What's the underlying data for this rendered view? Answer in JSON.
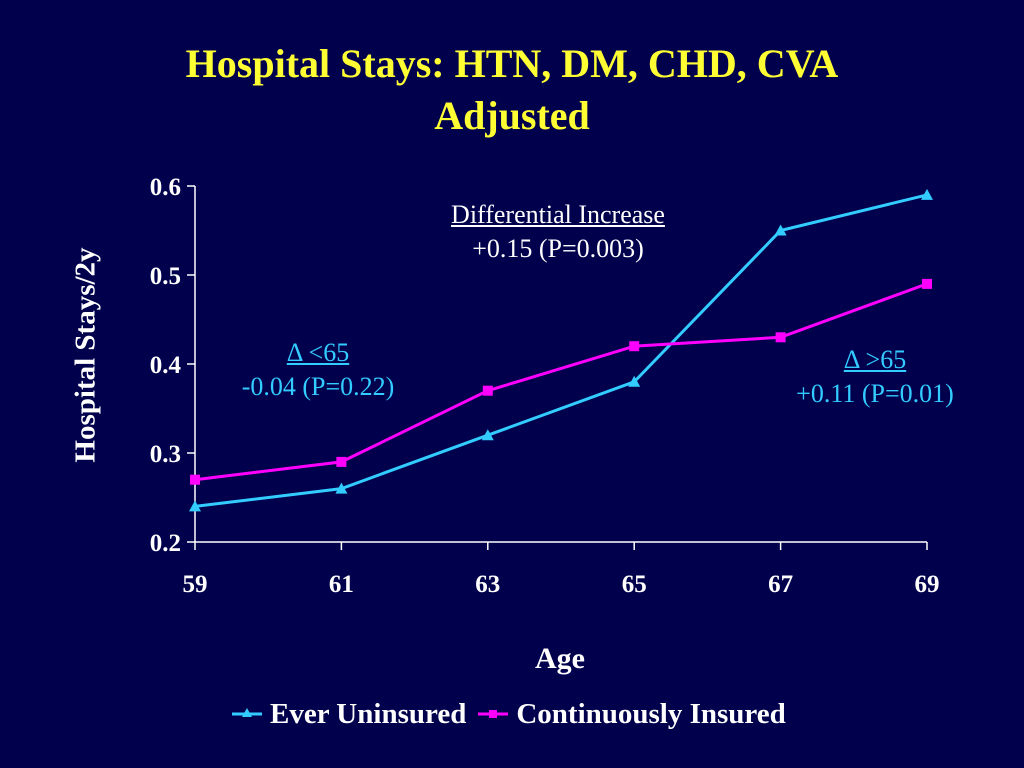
{
  "chart_data": {
    "type": "line",
    "title": "Hospital Stays: HTN, DM, CHD, CVA",
    "subtitle": "Adjusted",
    "xlabel": "Age",
    "ylabel": "Hospital Stays/2y",
    "x": [
      59,
      61,
      63,
      65,
      67,
      69
    ],
    "x_ticks": [
      "59",
      "61",
      "63",
      "65",
      "67",
      "69"
    ],
    "y_ticks": [
      "0.2",
      "0.3",
      "0.4",
      "0.5",
      "0.6"
    ],
    "ylim": [
      0.2,
      0.6
    ],
    "grid": false,
    "legend_position": "bottom",
    "series": [
      {
        "name": "Ever Uninsured",
        "color": "#33ccff",
        "marker": "triangle",
        "values": [
          0.24,
          0.26,
          0.32,
          0.38,
          0.55,
          0.59
        ]
      },
      {
        "name": "Continuously Insured",
        "color": "#ff00ff",
        "marker": "square",
        "values": [
          0.27,
          0.29,
          0.37,
          0.42,
          0.43,
          0.49
        ]
      }
    ],
    "annotations": {
      "differential": {
        "head": "Differential Increase",
        "body": "+0.15 (P=0.003)"
      },
      "under65": {
        "head": "Δ <65",
        "body": "-0.04 (P=0.22)"
      },
      "over65": {
        "head": "Δ >65",
        "body": "+0.11 (P=0.01)"
      }
    }
  }
}
